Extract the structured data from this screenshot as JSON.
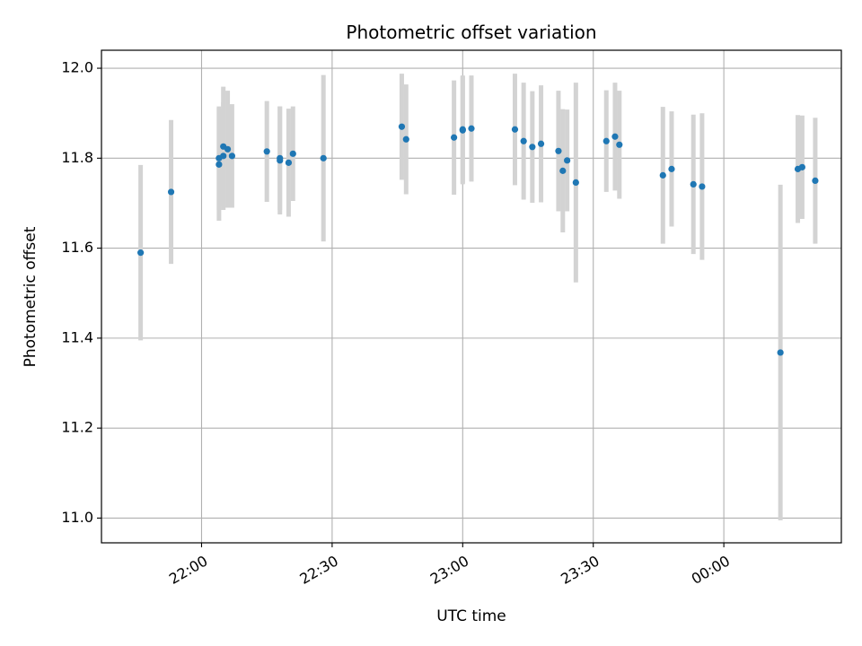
{
  "chart_data": {
    "type": "scatter",
    "title": "Photometric offset variation",
    "xlabel": "UTC time",
    "ylabel": "Photometric offset",
    "grid": true,
    "x_is_time": true,
    "x_ticks": [
      "22:00",
      "22:30",
      "23:00",
      "23:30",
      "00:00"
    ],
    "y_ticks": [
      "11.0",
      "11.2",
      "11.4",
      "11.6",
      "11.8",
      "12.0"
    ],
    "xlim": [
      "21:37",
      "00:27"
    ],
    "ylim": [
      10.945,
      12.04
    ],
    "colors": {
      "point": "#1f77b4",
      "errorbar": "#d3d3d3",
      "grid": "#b0b0b0"
    },
    "series": [
      {
        "points": [
          {
            "x": "21:46",
            "y": 11.59,
            "err": 0.195
          },
          {
            "x": "21:53",
            "y": 11.725,
            "err": 0.16
          },
          {
            "x": "22:04",
            "y": 11.786,
            "err": 0.125
          },
          {
            "x": "22:04",
            "y": 11.8,
            "err": 0.115
          },
          {
            "x": "22:05",
            "y": 11.805,
            "err": 0.12
          },
          {
            "x": "22:05",
            "y": 11.826,
            "err": 0.133
          },
          {
            "x": "22:06",
            "y": 11.82,
            "err": 0.13
          },
          {
            "x": "22:07",
            "y": 11.805,
            "err": 0.115
          },
          {
            "x": "22:15",
            "y": 11.815,
            "err": 0.112
          },
          {
            "x": "22:18",
            "y": 11.795,
            "err": 0.12
          },
          {
            "x": "22:18",
            "y": 11.8,
            "err": 0.115
          },
          {
            "x": "22:20",
            "y": 11.79,
            "err": 0.12
          },
          {
            "x": "22:21",
            "y": 11.81,
            "err": 0.105
          },
          {
            "x": "22:28",
            "y": 11.8,
            "err": 0.185
          },
          {
            "x": "22:46",
            "y": 11.87,
            "err": 0.118
          },
          {
            "x": "22:47",
            "y": 11.842,
            "err": 0.122
          },
          {
            "x": "22:58",
            "y": 11.846,
            "err": 0.127
          },
          {
            "x": "23:00",
            "y": 11.862,
            "err": 0.12
          },
          {
            "x": "23:00",
            "y": 11.864,
            "err": 0.12
          },
          {
            "x": "23:02",
            "y": 11.866,
            "err": 0.118
          },
          {
            "x": "23:12",
            "y": 11.864,
            "err": 0.124
          },
          {
            "x": "23:14",
            "y": 11.838,
            "err": 0.13
          },
          {
            "x": "23:16",
            "y": 11.825,
            "err": 0.124
          },
          {
            "x": "23:18",
            "y": 11.832,
            "err": 0.13
          },
          {
            "x": "23:22",
            "y": 11.816,
            "err": 0.134
          },
          {
            "x": "23:23",
            "y": 11.772,
            "err": 0.137
          },
          {
            "x": "23:24",
            "y": 11.795,
            "err": 0.113
          },
          {
            "x": "23:26",
            "y": 11.746,
            "err": 0.222
          },
          {
            "x": "23:33",
            "y": 11.838,
            "err": 0.113
          },
          {
            "x": "23:35",
            "y": 11.848,
            "err": 0.12
          },
          {
            "x": "23:36",
            "y": 11.83,
            "err": 0.12
          },
          {
            "x": "23:46",
            "y": 11.762,
            "err": 0.152
          },
          {
            "x": "23:48",
            "y": 11.776,
            "err": 0.128
          },
          {
            "x": "23:53",
            "y": 11.742,
            "err": 0.155
          },
          {
            "x": "23:55",
            "y": 11.737,
            "err": 0.163
          },
          {
            "x": "00:13",
            "y": 11.368,
            "err": 0.373
          },
          {
            "x": "00:17",
            "y": 11.776,
            "err": 0.12
          },
          {
            "x": "00:18",
            "y": 11.78,
            "err": 0.115
          },
          {
            "x": "00:21",
            "y": 11.75,
            "err": 0.14
          }
        ]
      }
    ]
  }
}
